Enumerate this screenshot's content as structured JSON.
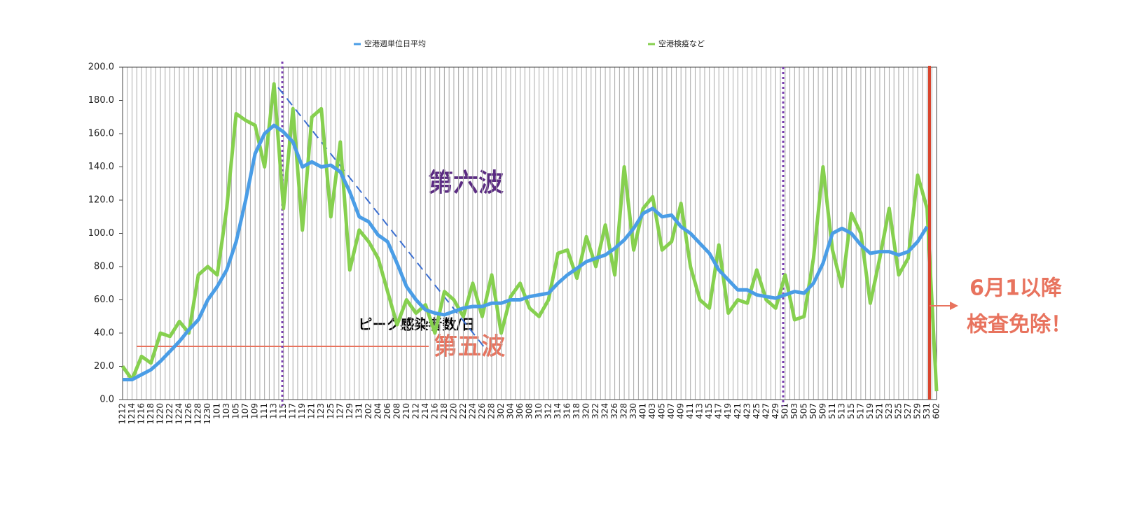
{
  "chart_data": {
    "type": "line",
    "legend": "top",
    "grid": true,
    "categories": [
      "1212",
      "1214",
      "1216",
      "1218",
      "1220",
      "1222",
      "1224",
      "1226",
      "1228",
      "1230",
      "101",
      "103",
      "105",
      "107",
      "109",
      "111",
      "113",
      "115",
      "117",
      "119",
      "121",
      "123",
      "125",
      "127",
      "129",
      "131",
      "202",
      "204",
      "206",
      "208",
      "210",
      "212",
      "214",
      "216",
      "218",
      "220",
      "222",
      "224",
      "226",
      "228",
      "302",
      "304",
      "306",
      "308",
      "310",
      "312",
      "314",
      "316",
      "318",
      "320",
      "322",
      "324",
      "326",
      "328",
      "330",
      "401",
      "403",
      "405",
      "407",
      "409",
      "411",
      "413",
      "415",
      "417",
      "419",
      "421",
      "423",
      "425",
      "427",
      "429",
      "501",
      "503",
      "505",
      "507",
      "509",
      "511",
      "513",
      "515",
      "517",
      "519",
      "521",
      "523",
      "525",
      "527",
      "529",
      "531",
      "602"
    ],
    "series": [
      {
        "name": "空港週単位日平均",
        "color": "#4a9de6",
        "width": 5,
        "values": [
          12,
          12,
          15,
          18,
          23,
          29,
          35,
          42,
          48,
          60,
          68,
          78,
          95,
          120,
          148,
          160,
          165,
          161,
          155,
          140,
          143,
          140,
          141,
          137,
          125,
          110,
          107,
          99,
          95,
          82,
          68,
          60,
          54,
          52,
          51,
          53,
          55,
          56,
          56,
          58,
          58,
          60,
          60,
          62,
          63,
          64,
          70,
          75,
          79,
          83,
          85,
          87,
          91,
          96,
          103,
          112,
          115,
          110,
          111,
          104,
          100,
          94,
          88,
          78,
          72,
          66,
          66,
          63,
          62,
          61,
          63,
          65,
          64,
          70,
          82,
          100,
          103,
          100,
          93,
          88,
          89,
          89,
          87,
          89,
          95,
          104,
          null
        ]
      },
      {
        "name": "空港検疫など",
        "color": "#86d04f",
        "width": 5,
        "values": [
          20,
          12,
          26,
          22,
          40,
          38,
          47,
          40,
          75,
          80,
          75,
          115,
          172,
          168,
          165,
          140,
          190,
          115,
          175,
          102,
          170,
          175,
          110,
          155,
          78,
          102,
          95,
          85,
          65,
          45,
          60,
          52,
          57,
          40,
          65,
          60,
          50,
          70,
          50,
          75,
          40,
          62,
          70,
          55,
          50,
          60,
          88,
          90,
          73,
          98,
          80,
          105,
          75,
          140,
          90,
          115,
          122,
          90,
          95,
          118,
          80,
          60,
          55,
          93,
          52,
          60,
          58,
          78,
          60,
          55,
          75,
          48,
          50,
          85,
          140,
          90,
          68,
          112,
          100,
          58,
          85,
          115,
          75,
          85,
          135,
          115,
          5
        ]
      }
    ],
    "ylim": [
      0,
      200
    ],
    "yticks": [
      {
        "value": 0,
        "label": "0.0"
      },
      {
        "value": 20,
        "label": "20.0"
      },
      {
        "value": 40,
        "label": "40.0"
      },
      {
        "value": 60,
        "label": "60.0"
      },
      {
        "value": 80,
        "label": "80.0"
      },
      {
        "value": 100,
        "label": "100.0"
      },
      {
        "value": 120,
        "label": "120.0"
      },
      {
        "value": 140,
        "label": "140.0"
      },
      {
        "value": 160,
        "label": "160.0"
      },
      {
        "value": 180,
        "label": "180.0"
      },
      {
        "value": 200,
        "label": "200.0"
      }
    ],
    "annotations": [
      "第六波",
      "ピーク感染者数/日",
      "第五波",
      "6月1以降",
      "検査免除！"
    ]
  }
}
